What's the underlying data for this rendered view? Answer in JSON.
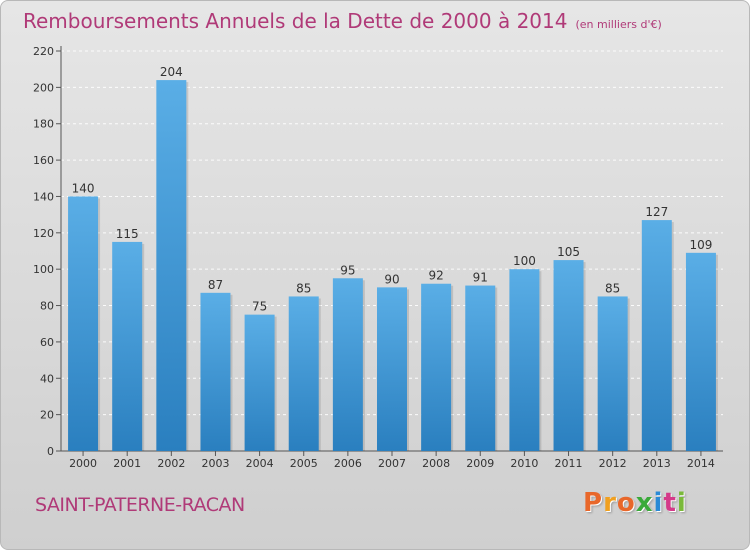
{
  "header": {
    "title": "Remboursements Annuels de la Dette de 2000 à 2014",
    "subtitle": "(en milliers d'€)"
  },
  "footer": {
    "commune": "SAINT-PATERNE-RACAN",
    "logo": "Proxiti"
  },
  "colors": {
    "title": "#b03a78",
    "bar_top": "#5aaee6",
    "bar_bottom": "#2a7fbf",
    "logo": [
      "#e8672a",
      "#f0a020",
      "#e8672a",
      "#3aaa3a",
      "#2a8ad6",
      "#d43a8a",
      "#7ab93a"
    ]
  },
  "chart_data": {
    "type": "bar",
    "categories": [
      "2000",
      "2001",
      "2002",
      "2003",
      "2004",
      "2005",
      "2006",
      "2007",
      "2008",
      "2009",
      "2010",
      "2011",
      "2012",
      "2013",
      "2014"
    ],
    "values": [
      140,
      115,
      204,
      87,
      75,
      85,
      95,
      90,
      92,
      91,
      100,
      105,
      85,
      127,
      109
    ],
    "yticks": [
      0,
      20,
      40,
      60,
      80,
      100,
      120,
      140,
      160,
      180,
      200,
      220
    ],
    "ylim": [
      0,
      220
    ],
    "grid": true,
    "data_labels": true
  }
}
